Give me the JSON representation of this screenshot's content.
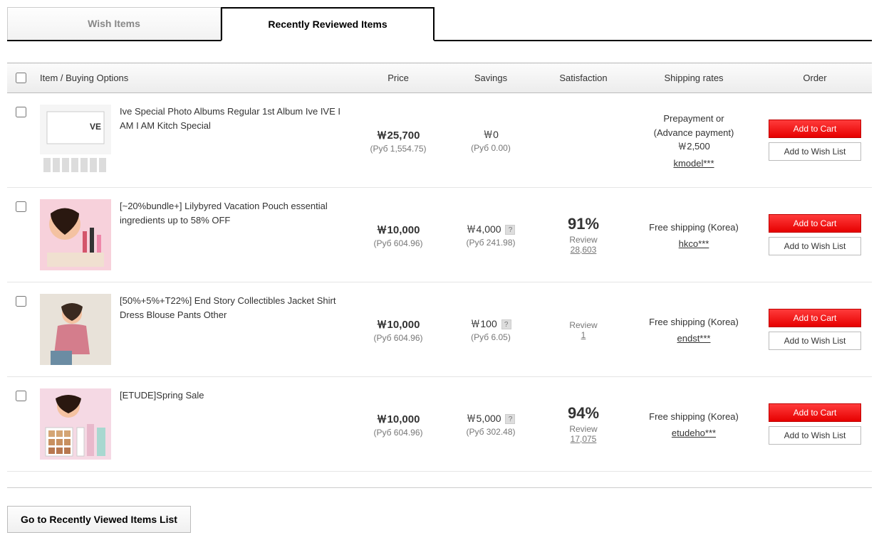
{
  "tabs": {
    "wish": "Wish Items",
    "recent": "Recently Reviewed Items"
  },
  "headers": {
    "item": "Item / Buying Options",
    "price": "Price",
    "savings": "Savings",
    "satisfaction": "Satisfaction",
    "shipping": "Shipping rates",
    "order": "Order"
  },
  "buttons": {
    "add_cart": "Add to Cart",
    "add_wish": "Add to Wish List",
    "footer": "Go to Recently Viewed Items List"
  },
  "rows": [
    {
      "title": "Ive Special Photo Albums Regular 1st Album Ive IVE I AM I AM Kitch Special",
      "price": "￦25,700",
      "price_sub": "(Руб  1,554.75)",
      "savings": "￦0",
      "savings_sub": "(Руб  0.00)",
      "savings_q": false,
      "sat_pct": "",
      "sat_label": "",
      "sat_count": "",
      "ship_line1": "Prepayment or",
      "ship_line2": "(Advance payment)",
      "ship_line3": "￦2,500",
      "seller": "kmodel***",
      "thumb": "album"
    },
    {
      "title": "[~20%bundle+] Lilybyred Vacation Pouch essential ingredients up to 58% OFF",
      "price": "￦10,000",
      "price_sub": "(Руб  604.96)",
      "savings": "￦4,000",
      "savings_sub": "(Руб  241.98)",
      "savings_q": true,
      "sat_pct": "91%",
      "sat_label": "Review",
      "sat_count": "28,603",
      "ship_line1": "Free shipping (Korea)",
      "ship_line2": "",
      "ship_line3": "",
      "seller": "hkco***",
      "thumb": "cosmetic1"
    },
    {
      "title": "[50%+5%+T22%] End Story Collectibles Jacket Shirt Dress Blouse Pants Other",
      "price": "￦10,000",
      "price_sub": "(Руб  604.96)",
      "savings": "￦100",
      "savings_sub": "(Руб  6.05)",
      "savings_q": true,
      "sat_pct": "",
      "sat_label": "Review",
      "sat_count": "1",
      "ship_line1": "Free shipping (Korea)",
      "ship_line2": "",
      "ship_line3": "",
      "seller": "endst***",
      "thumb": "fashion"
    },
    {
      "title": "[ETUDE]Spring Sale",
      "price": "￦10,000",
      "price_sub": "(Руб  604.96)",
      "savings": "￦5,000",
      "savings_sub": "(Руб  302.48)",
      "savings_q": true,
      "sat_pct": "94%",
      "sat_label": "Review",
      "sat_count": "17,075",
      "ship_line1": "Free shipping (Korea)",
      "ship_line2": "",
      "ship_line3": "",
      "seller": "etudeho***",
      "thumb": "cosmetic2"
    }
  ],
  "thumb_colors": {
    "album": [
      "#f5f5f5",
      "#dcdcdc"
    ],
    "cosmetic1": [
      "#f7d1db",
      "#e9a7b8"
    ],
    "fashion": [
      "#e8e2d9",
      "#d47d8c"
    ],
    "cosmetic2": [
      "#f5d9e4",
      "#e8b8cb"
    ]
  }
}
